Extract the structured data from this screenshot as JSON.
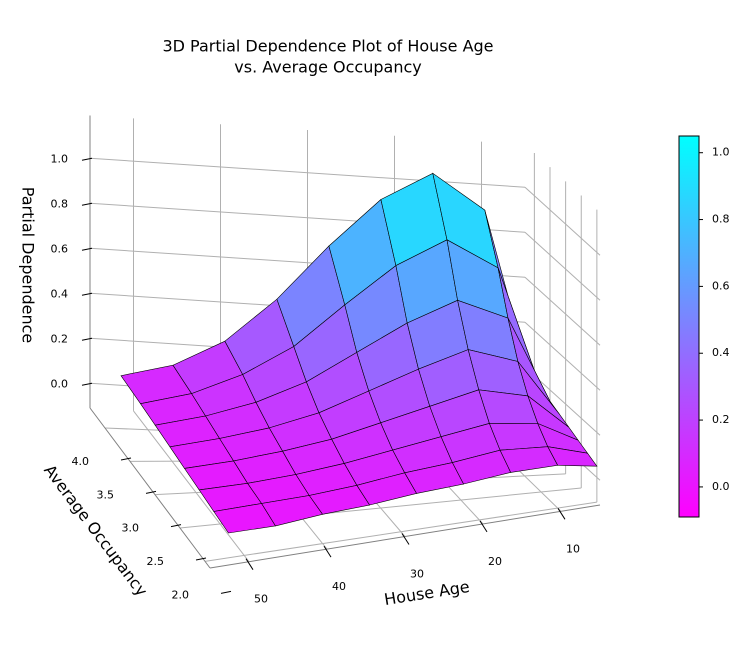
{
  "chart_data": {
    "type": "surface3d",
    "title": [
      "3D Partial Dependence Plot of House Age",
      "vs. Average Occupancy"
    ],
    "xlabel": "House Age",
    "ylabel": "Average Occupancy",
    "zlabel": "Partial Dependence",
    "x": [
      52,
      46,
      40,
      34,
      28,
      22,
      16,
      10,
      5
    ],
    "y": [
      2.0,
      2.3,
      2.6,
      2.9,
      3.2,
      3.5,
      3.8,
      4.2
    ],
    "values": [
      [
        0.0,
        0.0,
        0.02,
        0.03,
        0.05,
        0.06,
        0.08,
        0.08,
        0.05
      ],
      [
        0.01,
        0.02,
        0.03,
        0.05,
        0.08,
        0.1,
        0.13,
        0.12,
        0.07
      ],
      [
        0.02,
        0.03,
        0.05,
        0.08,
        0.12,
        0.16,
        0.2,
        0.18,
        0.09
      ],
      [
        0.03,
        0.05,
        0.08,
        0.12,
        0.18,
        0.24,
        0.3,
        0.26,
        0.11
      ],
      [
        0.04,
        0.07,
        0.11,
        0.17,
        0.26,
        0.35,
        0.43,
        0.37,
        0.13
      ],
      [
        0.05,
        0.09,
        0.15,
        0.24,
        0.37,
        0.5,
        0.6,
        0.52,
        0.15
      ],
      [
        0.06,
        0.11,
        0.2,
        0.33,
        0.52,
        0.7,
        0.82,
        0.7,
        0.17
      ],
      [
        0.07,
        0.13,
        0.25,
        0.45,
        0.7,
        0.92,
        1.05,
        0.9,
        0.2
      ]
    ],
    "xlim": [
      5,
      55
    ],
    "xticks": [
      50,
      40,
      30,
      20,
      10
    ],
    "ylim": [
      1.9,
      4.3
    ],
    "yticks": [
      {
        "value": 2.0,
        "label": "2.0"
      },
      2.5,
      {
        "value": 3.0,
        "label": "3.0"
      },
      3.5,
      {
        "value": 4.0,
        "label": "4.0"
      }
    ],
    "zlim": [
      -0.11,
      1.19
    ],
    "zticks": [
      {
        "value": 0.0,
        "label": "0.0"
      },
      0.2,
      0.4,
      0.6,
      0.8,
      {
        "value": 1.0,
        "label": "1.0"
      }
    ],
    "colormap": "cool_r",
    "colorbar": {
      "lim": [
        -0.09,
        1.05
      ],
      "ticks": [
        {
          "value": 0.0,
          "label": "0.0"
        },
        0.2,
        0.4,
        0.6,
        0.8,
        {
          "value": 1.0,
          "label": "1.0"
        }
      ]
    },
    "grid": true
  }
}
